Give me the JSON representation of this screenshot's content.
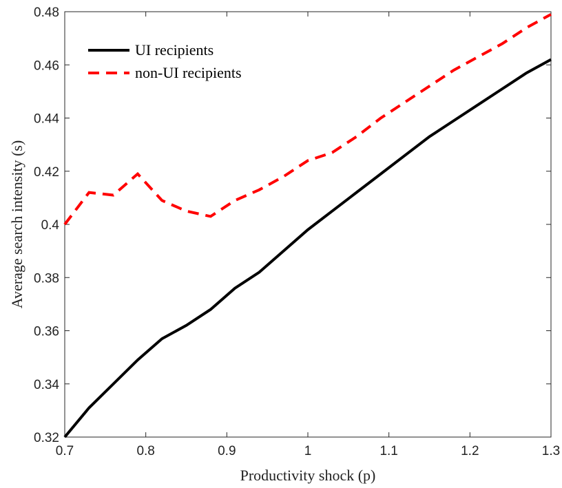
{
  "chart_data": {
    "type": "line",
    "x_label": "Productivity shock (p)",
    "y_label": "Average search intensity (s)",
    "x": [
      0.7,
      0.73,
      0.76,
      0.79,
      0.82,
      0.85,
      0.88,
      0.91,
      0.94,
      0.97,
      1.0,
      1.03,
      1.06,
      1.09,
      1.12,
      1.15,
      1.18,
      1.21,
      1.24,
      1.27,
      1.3
    ],
    "series": [
      {
        "name": "UI recipients",
        "color": "#000000",
        "dash": "solid",
        "values": [
          0.32,
          0.331,
          0.34,
          0.349,
          0.357,
          0.362,
          0.368,
          0.376,
          0.382,
          0.39,
          0.398,
          0.405,
          0.412,
          0.419,
          0.426,
          0.433,
          0.439,
          0.445,
          0.451,
          0.457,
          0.462
        ]
      },
      {
        "name": "non-UI recipients",
        "color": "#ff0000",
        "dash": "dashed",
        "values": [
          0.4,
          0.412,
          0.411,
          0.419,
          0.409,
          0.405,
          0.403,
          0.409,
          0.413,
          0.418,
          0.424,
          0.427,
          0.433,
          0.44,
          0.446,
          0.452,
          0.458,
          0.463,
          0.468,
          0.474,
          0.479
        ]
      }
    ],
    "xlim": [
      0.7,
      1.3
    ],
    "xticks": [
      0.7,
      0.8,
      0.9,
      1,
      1.1,
      1.2,
      1.3
    ],
    "ylim": [
      0.32,
      0.48
    ],
    "yticks": [
      0.32,
      0.34,
      0.36,
      0.38,
      0.4,
      0.42,
      0.44,
      0.46,
      0.48
    ],
    "legend": "upper left",
    "grid": false
  }
}
